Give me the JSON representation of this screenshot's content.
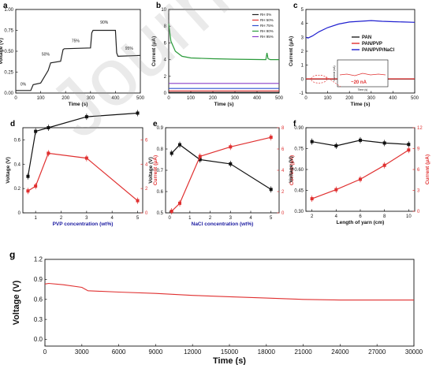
{
  "watermark": "Journal Pre-proof",
  "chart_data": [
    {
      "id": "a",
      "panel_label": "a",
      "type": "line",
      "xlabel": "Time (s)",
      "ylabel": "Voltage (V)",
      "xlim": [
        0,
        500
      ],
      "ylim": [
        0,
        1.0
      ],
      "xticks": [
        0,
        100,
        200,
        300,
        400,
        500
      ],
      "yticks": [
        0.0,
        0.25,
        0.5,
        0.75,
        1.0
      ],
      "ytick_labels": [
        "0.00",
        "0.25",
        "0.50",
        "0.75",
        "1.00"
      ],
      "series": [
        {
          "color": "#222222",
          "x": [
            0,
            60,
            70,
            100,
            130,
            140,
            180,
            190,
            195,
            300,
            305,
            310,
            400,
            405,
            410,
            500
          ],
          "y": [
            0.03,
            0.03,
            0.1,
            0.12,
            0.27,
            0.36,
            0.38,
            0.52,
            0.53,
            0.54,
            0.72,
            0.75,
            0.75,
            0.48,
            0.44,
            0.45
          ]
        }
      ],
      "annotations": [
        {
          "text": "0%",
          "x": 30,
          "y": 0.09
        },
        {
          "text": "50%",
          "x": 120,
          "y": 0.45
        },
        {
          "text": "75%",
          "x": 240,
          "y": 0.61
        },
        {
          "text": "90%",
          "x": 355,
          "y": 0.83
        },
        {
          "text": "95%",
          "x": 455,
          "y": 0.52
        }
      ]
    },
    {
      "id": "b",
      "panel_label": "b",
      "type": "line",
      "xlabel": "Time (s)",
      "ylabel": "Current (μA)",
      "xlim": [
        0,
        500
      ],
      "ylim": [
        0,
        10
      ],
      "xticks": [
        0,
        100,
        200,
        300,
        400,
        500
      ],
      "yticks": [
        0,
        2,
        4,
        6,
        8,
        10
      ],
      "series": [
        {
          "name": "RH 0%",
          "color": "#222222",
          "x": [
            0,
            500
          ],
          "y": [
            0.08,
            0.08
          ]
        },
        {
          "name": "RH 50%",
          "color": "#e03030",
          "x": [
            0,
            500
          ],
          "y": [
            0.25,
            0.25
          ]
        },
        {
          "name": "RH 75%",
          "color": "#3050d0",
          "x": [
            0,
            500
          ],
          "y": [
            0.55,
            0.55
          ]
        },
        {
          "name": "RH 90%",
          "color": "#2a9a3a",
          "x": [
            0,
            10,
            30,
            60,
            100,
            200,
            300,
            440,
            445,
            450,
            460,
            500
          ],
          "y": [
            8.3,
            6.2,
            5.0,
            4.4,
            4.2,
            4.1,
            4.05,
            4.0,
            4.8,
            4.1,
            4.0,
            4.0
          ]
        },
        {
          "name": "RH 95%",
          "color": "#8a3fc8",
          "x": [
            0,
            500
          ],
          "y": [
            1.15,
            1.15
          ]
        }
      ]
    },
    {
      "id": "c",
      "panel_label": "c",
      "type": "line",
      "xlabel": "Time (s)",
      "ylabel": "Current (μA)",
      "xlim": [
        0,
        500
      ],
      "ylim": [
        -1,
        5
      ],
      "xticks": [
        0,
        100,
        200,
        300,
        400,
        500
      ],
      "yticks": [
        -1,
        0,
        1,
        2,
        3,
        4,
        5
      ],
      "series": [
        {
          "name": "PAN",
          "color": "#222222",
          "x": [
            0,
            500
          ],
          "y": [
            0.0,
            0.0
          ]
        },
        {
          "name": "PAN/PVP",
          "color": "#e03030",
          "x": [
            0,
            500
          ],
          "y": [
            0.02,
            0.02
          ]
        },
        {
          "name": "PAN/PVP/NaCl",
          "color": "#2020d0",
          "x": [
            0,
            10,
            30,
            60,
            100,
            150,
            200,
            250,
            300,
            350,
            400,
            450,
            500
          ],
          "y": [
            3.0,
            2.95,
            3.1,
            3.4,
            3.7,
            3.95,
            4.1,
            4.15,
            4.2,
            4.15,
            4.12,
            4.1,
            4.08
          ]
        }
      ],
      "annotations": [
        {
          "text": "~20 nA"
        }
      ],
      "inset": {
        "xlabel": "Time (s)",
        "ylabel": "Current (nA)",
        "xticks": [
          0,
          100,
          200,
          300,
          400,
          500
        ],
        "yticks": [
          0,
          20,
          40
        ]
      }
    },
    {
      "id": "d",
      "panel_label": "d",
      "type": "line",
      "xlabel": "PVP concentration (wt%)",
      "ylabel": "Voltage (V)",
      "y2label": "Current (μA)",
      "xlim": [
        0.5,
        5.2
      ],
      "ylim": [
        0,
        0.7
      ],
      "y2lim": [
        0,
        7
      ],
      "xticks": [
        1,
        2,
        3,
        4,
        5
      ],
      "yticks": [
        0.0,
        0.2,
        0.4,
        0.6
      ],
      "y2ticks": [
        0,
        2,
        4,
        6
      ],
      "series": [
        {
          "name": "Voltage",
          "axis": "left",
          "color": "#111111",
          "x": [
            0.7,
            1.0,
            1.5,
            3,
            5
          ],
          "y": [
            0.3,
            0.67,
            0.7,
            0.79,
            0.82
          ]
        },
        {
          "name": "Current",
          "axis": "right",
          "color": "#e03030",
          "x": [
            0.7,
            1.0,
            1.5,
            3,
            5
          ],
          "y": [
            1.8,
            2.2,
            4.9,
            4.5,
            1.0
          ]
        }
      ]
    },
    {
      "id": "e",
      "panel_label": "e",
      "type": "line",
      "xlabel": "NaCl concentration (wt%)",
      "ylabel": "Voltage (V)",
      "y2label": "Current (μA)",
      "xlim": [
        -0.2,
        5.4
      ],
      "ylim": [
        0.5,
        0.9
      ],
      "y2lim": [
        0,
        8
      ],
      "xticks": [
        0,
        1,
        2,
        3,
        4,
        5
      ],
      "yticks": [
        0.5,
        0.6,
        0.7,
        0.8,
        0.9
      ],
      "y2ticks": [
        0,
        2,
        4,
        6,
        8
      ],
      "series": [
        {
          "name": "Voltage",
          "axis": "left",
          "color": "#111111",
          "x": [
            0.1,
            0.5,
            1.5,
            3,
            5
          ],
          "y": [
            0.78,
            0.82,
            0.75,
            0.73,
            0.61
          ]
        },
        {
          "name": "Current",
          "axis": "right",
          "color": "#e03030",
          "x": [
            0.1,
            0.5,
            1.5,
            3,
            5
          ],
          "y": [
            0.15,
            0.9,
            5.3,
            6.2,
            7.1
          ]
        }
      ]
    },
    {
      "id": "f",
      "panel_label": "f",
      "type": "line",
      "xlabel": "Length of yarn (cm)",
      "ylabel": "Voltage (V)",
      "y2label": "Current (μA)",
      "xlim": [
        1.5,
        10.5
      ],
      "ylim": [
        0.3,
        0.9
      ],
      "y2lim": [
        0,
        12
      ],
      "xticks": [
        2,
        4,
        6,
        8,
        10
      ],
      "yticks": [
        0.3,
        0.45,
        0.6,
        0.75,
        0.9
      ],
      "y2ticks": [
        0,
        3,
        6,
        9,
        12
      ],
      "series": [
        {
          "name": "Voltage",
          "axis": "left",
          "color": "#111111",
          "x": [
            2,
            4,
            6,
            8,
            10
          ],
          "y": [
            0.8,
            0.77,
            0.81,
            0.79,
            0.78
          ]
        },
        {
          "name": "Current",
          "axis": "right",
          "color": "#e03030",
          "x": [
            2,
            4,
            6,
            8,
            10
          ],
          "y": [
            1.8,
            3.1,
            4.6,
            6.6,
            8.8
          ]
        }
      ]
    },
    {
      "id": "g",
      "panel_label": "g",
      "type": "line",
      "xlabel": "Time (s)",
      "ylabel": "Voltage (V)",
      "xlim": [
        0,
        30000
      ],
      "ylim": [
        -0.1,
        1.2
      ],
      "xticks": [
        0,
        3000,
        6000,
        9000,
        12000,
        15000,
        18000,
        21000,
        24000,
        27000,
        30000
      ],
      "yticks": [
        0.0,
        0.3,
        0.6,
        0.9,
        1.2
      ],
      "series": [
        {
          "name": "Voltage",
          "color": "#e03030",
          "x": [
            0,
            300,
            1500,
            3000,
            3500,
            6000,
            9000,
            12000,
            15000,
            18000,
            21000,
            24000,
            27000,
            30000
          ],
          "y": [
            0.83,
            0.84,
            0.82,
            0.78,
            0.73,
            0.71,
            0.69,
            0.66,
            0.64,
            0.62,
            0.6,
            0.59,
            0.59,
            0.59
          ]
        }
      ]
    }
  ]
}
